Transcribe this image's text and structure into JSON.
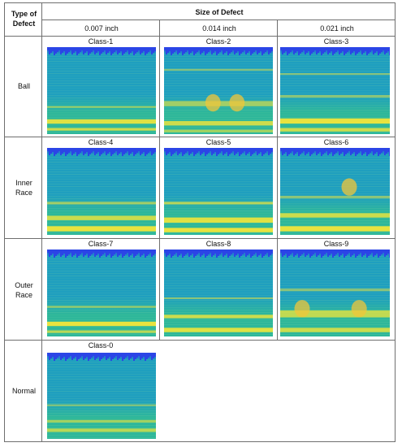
{
  "header": {
    "type_of_defect": [
      "Type of",
      "Defect"
    ],
    "size_of_defect": "Size of Defect",
    "sizes": [
      "0.007 inch",
      "0.014 inch",
      "0.021 inch"
    ]
  },
  "rows": [
    {
      "label": [
        "Ball"
      ],
      "classes": [
        "Class-1",
        "Class-2",
        "Class-3"
      ]
    },
    {
      "label": [
        "Inner",
        "Race"
      ],
      "classes": [
        "Class-4",
        "Class-5",
        "Class-6"
      ]
    },
    {
      "label": [
        "Outer",
        "Race"
      ],
      "classes": [
        "Class-7",
        "Class-8",
        "Class-9"
      ]
    },
    {
      "label": [
        "Normal"
      ],
      "classes": [
        "Class-0"
      ]
    }
  ],
  "colors": {
    "border": "#6f6f6f",
    "spectrogram_top": "#2b45e6",
    "spectrogram_mid": "#1f9fbf",
    "spectrogram_low": "#2eb79a",
    "spectrogram_band": "#f2e53a"
  }
}
